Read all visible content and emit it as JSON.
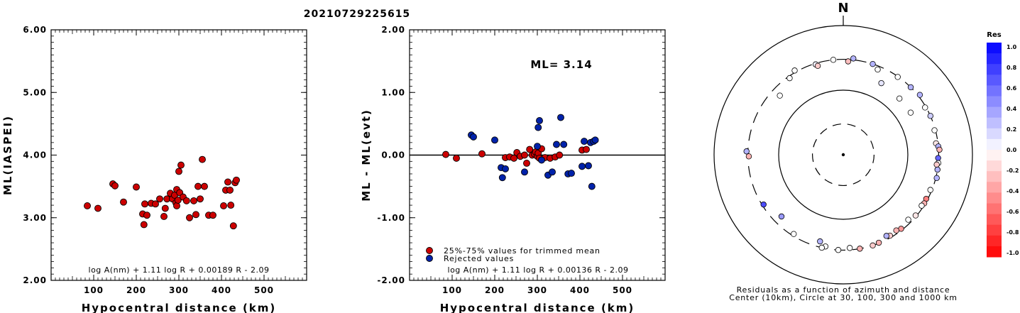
{
  "title": "20210729225615",
  "chart_data": [
    {
      "type": "scatter",
      "xlabel": "Hypocentral distance (km)",
      "ylabel": "ML(IASPEI)",
      "xlim": [
        0,
        600
      ],
      "ylim": [
        2.0,
        6.0
      ],
      "xticks": [
        "100",
        "200",
        "300",
        "400",
        "500"
      ],
      "yticks": [
        "2.00",
        "3.00",
        "4.00",
        "5.00",
        "6.00"
      ],
      "formula": "log A(nm) + 1.11 log R + 0.00189 R - 2.09",
      "points": [
        [
          85,
          3.19
        ],
        [
          110,
          3.15
        ],
        [
          145,
          3.54
        ],
        [
          150,
          3.51
        ],
        [
          170,
          3.25
        ],
        [
          200,
          3.49
        ],
        [
          215,
          3.06
        ],
        [
          220,
          3.22
        ],
        [
          225,
          3.04
        ],
        [
          218,
          2.89
        ],
        [
          235,
          3.23
        ],
        [
          245,
          3.22
        ],
        [
          255,
          3.3
        ],
        [
          265,
          3.02
        ],
        [
          268,
          3.15
        ],
        [
          272,
          3.3
        ],
        [
          280,
          3.39
        ],
        [
          285,
          3.3
        ],
        [
          290,
          3.36
        ],
        [
          293,
          3.24
        ],
        [
          295,
          3.45
        ],
        [
          295,
          3.19
        ],
        [
          298,
          3.28
        ],
        [
          300,
          3.74
        ],
        [
          302,
          3.4
        ],
        [
          305,
          3.84
        ],
        [
          310,
          3.33
        ],
        [
          318,
          3.27
        ],
        [
          325,
          3.0
        ],
        [
          335,
          3.27
        ],
        [
          340,
          3.05
        ],
        [
          345,
          3.5
        ],
        [
          350,
          3.3
        ],
        [
          355,
          3.93
        ],
        [
          360,
          3.5
        ],
        [
          370,
          3.04
        ],
        [
          380,
          3.04
        ],
        [
          405,
          3.19
        ],
        [
          410,
          3.44
        ],
        [
          415,
          3.57
        ],
        [
          420,
          3.44
        ],
        [
          422,
          3.2
        ],
        [
          428,
          2.87
        ],
        [
          432,
          3.56
        ],
        [
          435,
          3.6
        ]
      ]
    },
    {
      "type": "scatter",
      "xlabel": "Hypocentral distance (km)",
      "ylabel": "ML - ML(evt)",
      "xlim": [
        0,
        600
      ],
      "ylim": [
        -2.0,
        2.0
      ],
      "xticks": [
        "100",
        "200",
        "300",
        "400",
        "500"
      ],
      "yticks": [
        "-2.00",
        "-1.00",
        "0.00",
        "1.00",
        "2.00"
      ],
      "annotation": "ML=  3.14",
      "formula": "log A(nm) + 1.11 log R + 0.00136 R - 2.09",
      "legend": {
        "position": "bottom-left",
        "entries": [
          {
            "label": "25%-75% values for trimmed mean",
            "color": "#cc0000"
          },
          {
            "label": "Rejected values",
            "color": "#0022aa"
          }
        ]
      },
      "series": [
        {
          "name": "25%-75% values for trimmed mean",
          "color": "#cc0000",
          "points": [
            [
              85,
              0.01
            ],
            [
              110,
              -0.05
            ],
            [
              170,
              0.02
            ],
            [
              225,
              -0.04
            ],
            [
              235,
              -0.03
            ],
            [
              245,
              -0.05
            ],
            [
              252,
              0.04
            ],
            [
              260,
              -0.02
            ],
            [
              270,
              0.0
            ],
            [
              275,
              -0.13
            ],
            [
              282,
              0.09
            ],
            [
              288,
              0.0
            ],
            [
              293,
              0.02
            ],
            [
              296,
              0.05
            ],
            [
              300,
              -0.02
            ],
            [
              302,
              0.03
            ],
            [
              305,
              -0.05
            ],
            [
              310,
              0.1
            ],
            [
              318,
              -0.04
            ],
            [
              330,
              -0.05
            ],
            [
              342,
              -0.03
            ],
            [
              352,
              0.0
            ],
            [
              405,
              0.08
            ],
            [
              415,
              0.09
            ]
          ]
        },
        {
          "name": "Rejected values",
          "color": "#0022aa",
          "points": [
            [
              145,
              0.32
            ],
            [
              150,
              0.29
            ],
            [
              200,
              0.24
            ],
            [
              215,
              -0.2
            ],
            [
              218,
              -0.36
            ],
            [
              225,
              -0.22
            ],
            [
              270,
              -0.27
            ],
            [
              300,
              0.14
            ],
            [
              302,
              0.44
            ],
            [
              305,
              0.55
            ],
            [
              310,
              -0.08
            ],
            [
              325,
              -0.32
            ],
            [
              335,
              -0.27
            ],
            [
              345,
              0.17
            ],
            [
              355,
              0.6
            ],
            [
              362,
              0.17
            ],
            [
              372,
              -0.3
            ],
            [
              380,
              -0.29
            ],
            [
              405,
              -0.18
            ],
            [
              410,
              0.22
            ],
            [
              420,
              -0.17
            ],
            [
              425,
              0.2
            ],
            [
              428,
              -0.5
            ],
            [
              432,
              0.22
            ],
            [
              436,
              0.24
            ]
          ]
        }
      ]
    },
    {
      "type": "scatter",
      "subtype": "polar residual plot",
      "north_label": "N",
      "caption_line1": "Residuals as a function of azimuth and distance",
      "caption_line2": "Center (10km), Circle at 30, 100, 300 and 1000 km",
      "colorbar": {
        "title": "Res",
        "ticks": [
          "1.0",
          "0.8",
          "0.6",
          "0.4",
          "0.2",
          "0.0",
          "-0.2",
          "-0.4",
          "-0.6",
          "-0.8",
          "-1.0"
        ]
      },
      "points": [
        {
          "azimuth": 354,
          "distance": 300,
          "res": 0.0
        },
        {
          "azimuth": 6,
          "distance": 315,
          "res": 0.3
        },
        {
          "azimuth": 343,
          "distance": 290,
          "res": 0.05
        },
        {
          "azimuth": 344,
          "distance": 270,
          "res": -0.2
        },
        {
          "azimuth": 3,
          "distance": 280,
          "res": -0.25
        },
        {
          "azimuth": 18,
          "distance": 300,
          "res": 0.3
        },
        {
          "azimuth": 22,
          "distance": 265,
          "res": 0.0
        },
        {
          "azimuth": 35,
          "distance": 295,
          "res": 0.0
        },
        {
          "azimuth": 45,
          "distance": 300,
          "res": 0.3
        },
        {
          "azimuth": 52,
          "distance": 320,
          "res": 0.3
        },
        {
          "azimuth": 45,
          "distance": 170,
          "res": 0.0
        },
        {
          "azimuth": 60,
          "distance": 290,
          "res": 0.0
        },
        {
          "azimuth": 66,
          "distance": 300,
          "res": 0.2
        },
        {
          "azimuth": 75,
          "distance": 290,
          "res": 0.0
        },
        {
          "azimuth": 83,
          "distance": 280,
          "res": -0.1
        },
        {
          "azimuth": 85,
          "distance": 300,
          "res": 0.3
        },
        {
          "azimuth": 87,
          "distance": 310,
          "res": -0.3
        },
        {
          "azimuth": 92,
          "distance": 295,
          "res": 0.6
        },
        {
          "azimuth": 95,
          "distance": 300,
          "res": 0.0
        },
        {
          "azimuth": 96,
          "distance": 285,
          "res": -0.2
        },
        {
          "azimuth": 99,
          "distance": 300,
          "res": 0.3
        },
        {
          "azimuth": 104,
          "distance": 310,
          "res": 0.3
        },
        {
          "azimuth": 112,
          "distance": 285,
          "res": 0.0
        },
        {
          "azimuth": 118,
          "distance": 285,
          "res": -0.5
        },
        {
          "azimuth": 121,
          "distance": 290,
          "res": -0.3
        },
        {
          "azimuth": 123,
          "distance": 280,
          "res": 0.0
        },
        {
          "azimuth": 130,
          "distance": 290,
          "res": -0.1
        },
        {
          "azimuth": 135,
          "distance": 265,
          "res": 0.0
        },
        {
          "azimuth": 142,
          "distance": 285,
          "res": -0.4
        },
        {
          "azimuth": 145,
          "distance": 270,
          "res": -0.3
        },
        {
          "azimuth": 150,
          "distance": 280,
          "res": -0.2
        },
        {
          "azimuth": 152,
          "distance": 265,
          "res": 0.3
        },
        {
          "azimuth": 158,
          "distance": 295,
          "res": -0.3
        },
        {
          "azimuth": 162,
          "distance": 300,
          "res": -0.2
        },
        {
          "azimuth": 170,
          "distance": 300,
          "res": -0.3
        },
        {
          "azimuth": 176,
          "distance": 280,
          "res": 0.0
        },
        {
          "azimuth": 183,
          "distance": 300,
          "res": 0.0
        },
        {
          "azimuth": 191,
          "distance": 280,
          "res": 0.0
        },
        {
          "azimuth": 193,
          "distance": 300,
          "res": 0.0
        },
        {
          "azimuth": 195,
          "distance": 245,
          "res": 0.3
        },
        {
          "azimuth": 212,
          "distance": 280,
          "res": 0.0
        },
        {
          "azimuth": 225,
          "distance": 225,
          "res": 0.4
        },
        {
          "azimuth": 238,
          "distance": 285,
          "res": 0.7
        },
        {
          "azimuth": 269,
          "distance": 290,
          "res": -0.3
        },
        {
          "azimuth": 272,
          "distance": 315,
          "res": 0.3
        },
        {
          "azimuth": 313,
          "distance": 220,
          "res": 0.0
        },
        {
          "azimuth": 325,
          "distance": 280,
          "res": 0.0
        },
        {
          "azimuth": 330,
          "distance": 320,
          "res": 0.0
        },
        {
          "azimuth": 28,
          "distance": 180,
          "res": 0.1
        },
        {
          "azimuth": 58,
          "distance": 170,
          "res": 0.0
        }
      ]
    }
  ]
}
